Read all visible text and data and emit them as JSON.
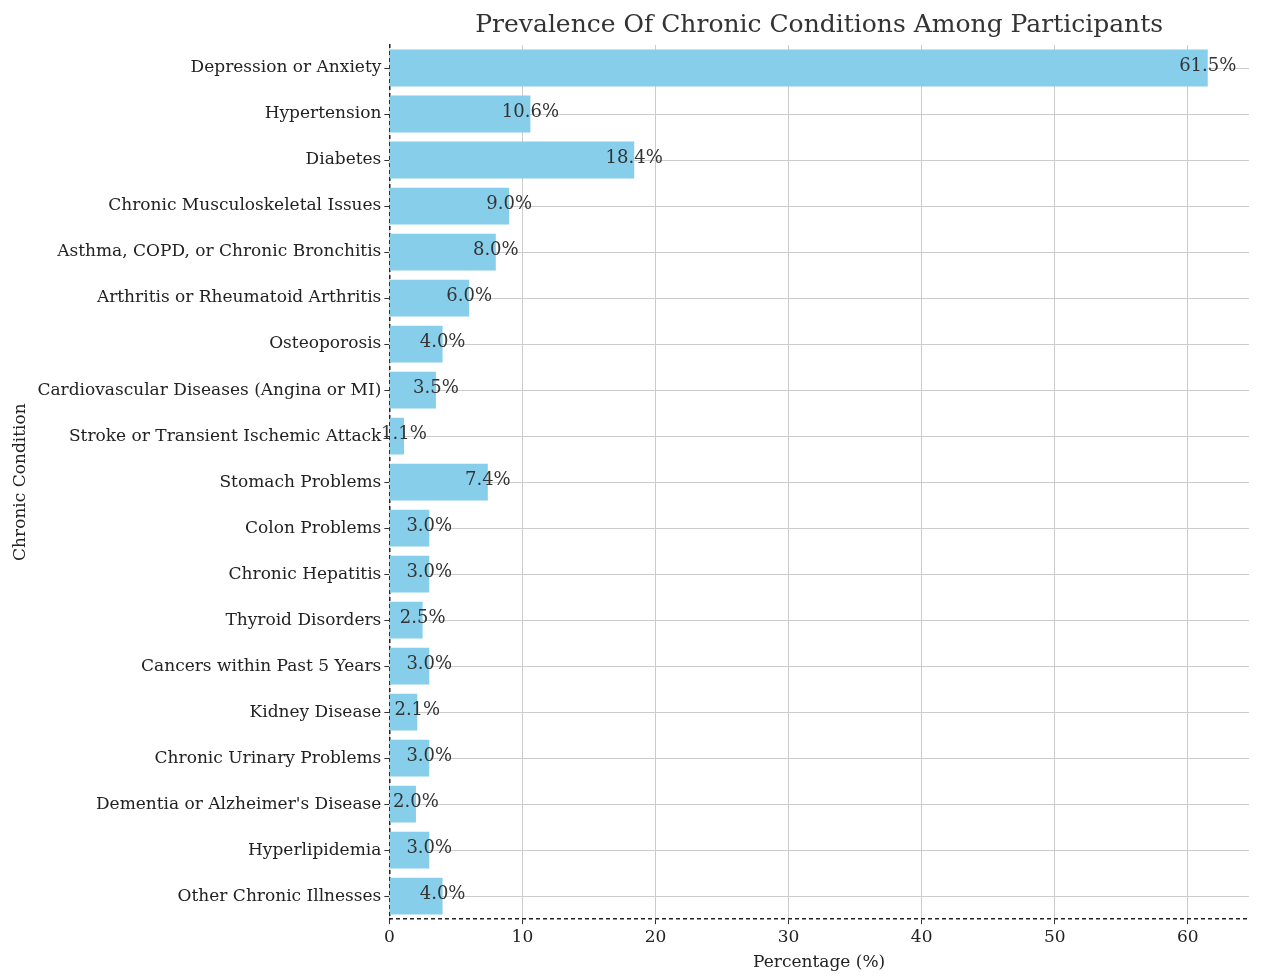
{
  "chart_data": {
    "type": "bar",
    "orientation": "horizontal",
    "title": "Prevalence Of Chronic Conditions Among Participants",
    "xlabel": "Percentage (%)",
    "ylabel": "Chronic Condition",
    "categories": [
      "Depression or Anxiety",
      "Hypertension",
      "Diabetes",
      "Chronic Musculoskeletal Issues",
      "Asthma, COPD, or Chronic Bronchitis",
      "Arthritis or Rheumatoid Arthritis",
      "Osteoporosis",
      "Cardiovascular Diseases (Angina or MI)",
      "Stroke or Transient Ischemic Attack",
      "Stomach Problems",
      "Colon Problems",
      "Chronic Hepatitis",
      "Thyroid Disorders",
      "Cancers within Past 5 Years",
      "Kidney Disease",
      "Chronic Urinary Problems",
      "Dementia or Alzheimer's Disease",
      "Hyperlipidemia",
      "Other Chronic Illnesses"
    ],
    "values": [
      61.5,
      10.6,
      18.4,
      9.0,
      8.0,
      6.0,
      4.0,
      3.5,
      1.1,
      7.4,
      3.0,
      3.0,
      2.5,
      3.0,
      2.1,
      3.0,
      2.0,
      3.0,
      4.0
    ],
    "value_labels": [
      "61.5%",
      "10.6%",
      "18.4%",
      "9.0%",
      "8.0%",
      "6.0%",
      "4.0%",
      "3.5%",
      "1.1%",
      "7.4%",
      "3.0%",
      "3.0%",
      "2.5%",
      "3.0%",
      "2.1%",
      "3.0%",
      "2.0%",
      "3.0%",
      "4.0%"
    ],
    "color": "#87ceeb",
    "xlim": [
      0,
      64.6
    ],
    "xticks": [
      0,
      10,
      20,
      30,
      40,
      50,
      60
    ],
    "grid": true
  }
}
